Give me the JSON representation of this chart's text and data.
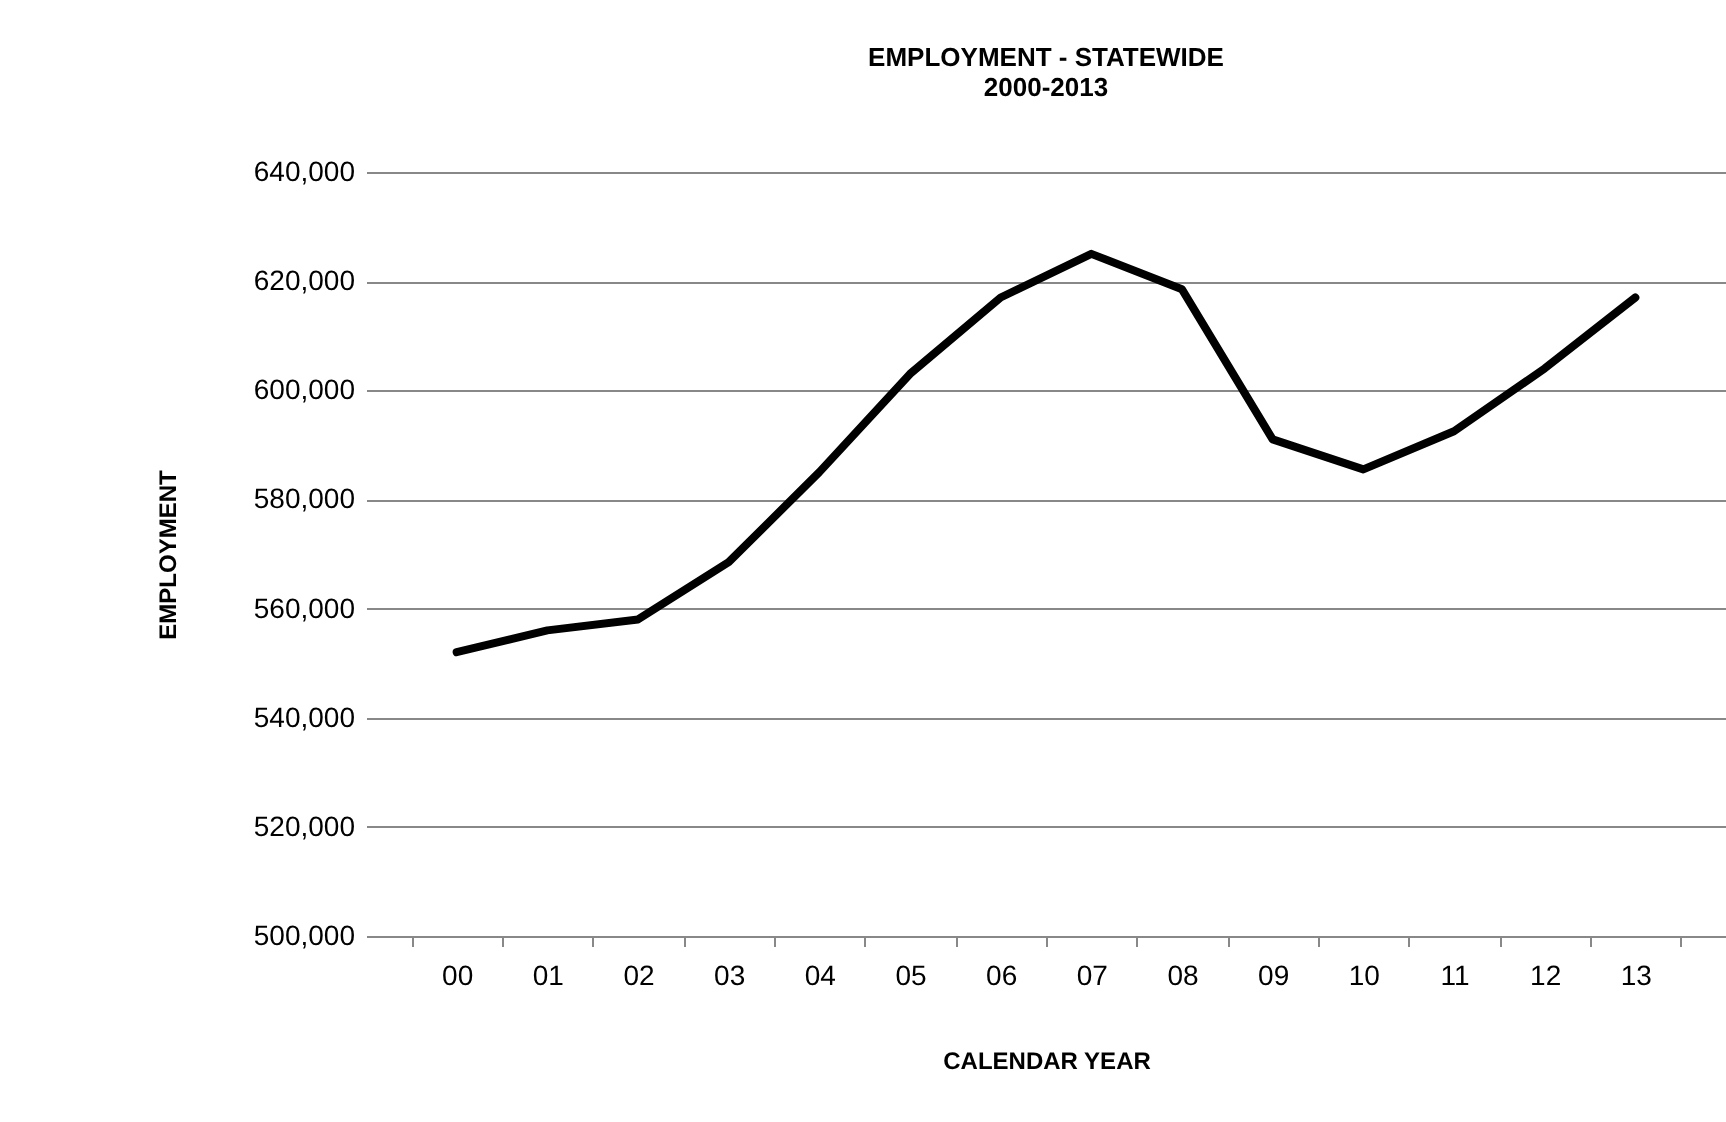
{
  "chart_data": {
    "type": "line",
    "title": "EMPLOYMENT - STATEWIDE",
    "subtitle": "2000-2013",
    "xlabel": "CALENDAR YEAR",
    "ylabel": "EMPLOYMENT",
    "categories": [
      "00",
      "01",
      "02",
      "03",
      "04",
      "05",
      "06",
      "07",
      "08",
      "09",
      "10",
      "11",
      "12",
      "13"
    ],
    "series": [
      {
        "color": "#000000",
        "values": [
          552000,
          556000,
          558000,
          568500,
          585000,
          603000,
          617000,
          625000,
          618500,
          591000,
          585500,
          592500,
          604000,
          617000
        ]
      }
    ],
    "ylim": [
      500000,
      640000
    ],
    "yticks": [
      {
        "value": 500000,
        "label": "500,000"
      },
      {
        "value": 520000,
        "label": "520,000"
      },
      {
        "value": 540000,
        "label": "540,000"
      },
      {
        "value": 560000,
        "label": "560,000"
      },
      {
        "value": 580000,
        "label": "580,000"
      },
      {
        "value": 600000,
        "label": "600,000"
      },
      {
        "value": 620000,
        "label": "620,000"
      },
      {
        "value": 640000,
        "label": "640,000"
      }
    ],
    "grid": "y",
    "legend": false,
    "marker": "none",
    "line_style": "solid"
  }
}
